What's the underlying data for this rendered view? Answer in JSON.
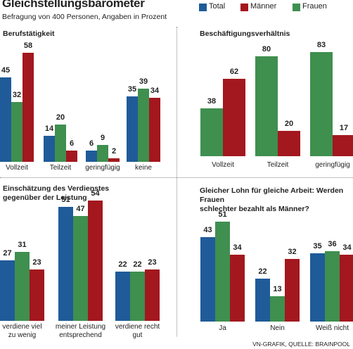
{
  "title": "Gleichstellungsbarometer",
  "subtitle": "Befragung von 400 Personen, Angaben in Prozent",
  "source": "VN-GRAFIK, QUELLE: BRAINPOOL",
  "chart_data": [
    {
      "type": "bar",
      "title": "Berufstätigkeit",
      "categories": [
        "Vollzeit",
        "Teilzeit",
        "geringfügig",
        "keine"
      ],
      "series": [
        {
          "name": "Total",
          "color": "#1f5b99",
          "values": [
            45,
            14,
            6,
            35
          ]
        },
        {
          "name": "Frauen",
          "color": "#3f8f4f",
          "values": [
            32,
            20,
            9,
            39
          ]
        },
        {
          "name": "Männer",
          "color": "#a3171e",
          "values": [
            58,
            6,
            2,
            34
          ]
        }
      ]
    },
    {
      "type": "bar",
      "title": "Beschäftigungsverhältnis",
      "categories": [
        "Vollzeit",
        "Teilzeit",
        "geringfügig"
      ],
      "series": [
        {
          "name": "Frauen",
          "color": "#3f8f4f",
          "values": [
            38,
            80,
            83
          ]
        },
        {
          "name": "Männer",
          "color": "#a3171e",
          "values": [
            62,
            20,
            17
          ]
        }
      ]
    },
    {
      "type": "bar",
      "title": "Einschätzung des Verdienstes\ngegenüber der Leistung",
      "categories": [
        "verdiene viel\nzu wenig",
        "meiner Leistung\nentsprechend",
        "verdiene recht\ngut"
      ],
      "series": [
        {
          "name": "Total",
          "color": "#1f5b99",
          "values": [
            27,
            51,
            22
          ]
        },
        {
          "name": "Frauen",
          "color": "#3f8f4f",
          "values": [
            31,
            47,
            22
          ]
        },
        {
          "name": "Männer",
          "color": "#a3171e",
          "values": [
            23,
            54,
            23
          ]
        }
      ]
    },
    {
      "type": "bar",
      "title": "Gleicher Lohn für gleiche Arbeit: Werden Frauen\nschlechter bezahlt als Männer?",
      "categories": [
        "Ja",
        "Nein",
        "Weiß nicht"
      ],
      "series": [
        {
          "name": "Total",
          "color": "#1f5b99",
          "values": [
            43,
            22,
            35
          ]
        },
        {
          "name": "Frauen",
          "color": "#3f8f4f",
          "values": [
            51,
            13,
            36
          ]
        },
        {
          "name": "Männer",
          "color": "#a3171e",
          "values": [
            34,
            32,
            34
          ]
        }
      ]
    }
  ]
}
